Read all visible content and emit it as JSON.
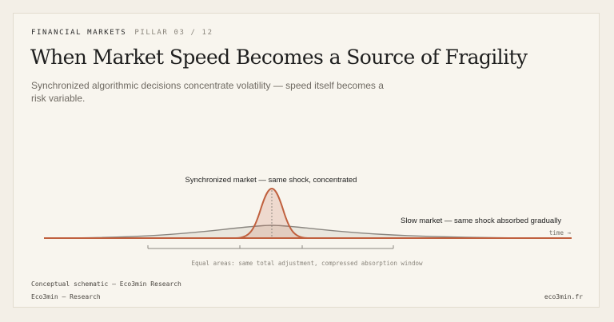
{
  "header": {
    "category": "FINANCIAL MARKETS",
    "pillar": "PILLAR 03 / 12",
    "title": "When Market Speed Becomes a Source of Fragility",
    "subtitle": "Synchronized algorithmic decisions concentrate volatility — speed itself becomes a risk variable."
  },
  "diagram": {
    "sync_label": "Synchronized market — same shock, concentrated",
    "slow_label": "Slow market — same shock absorbed gradually",
    "axis_label": "time →",
    "bracket_label": "Equal areas: same total adjustment, compressed absorption window"
  },
  "footer": {
    "note": "Conceptual schematic — Eco3min Research",
    "brand": "Eco3min — Research",
    "url": "eco3min.fr"
  },
  "colors": {
    "background": "#f8f5ee",
    "accent": "#c0603e",
    "slow_curve": "#8a8680",
    "text": "#1f1f1f"
  }
}
